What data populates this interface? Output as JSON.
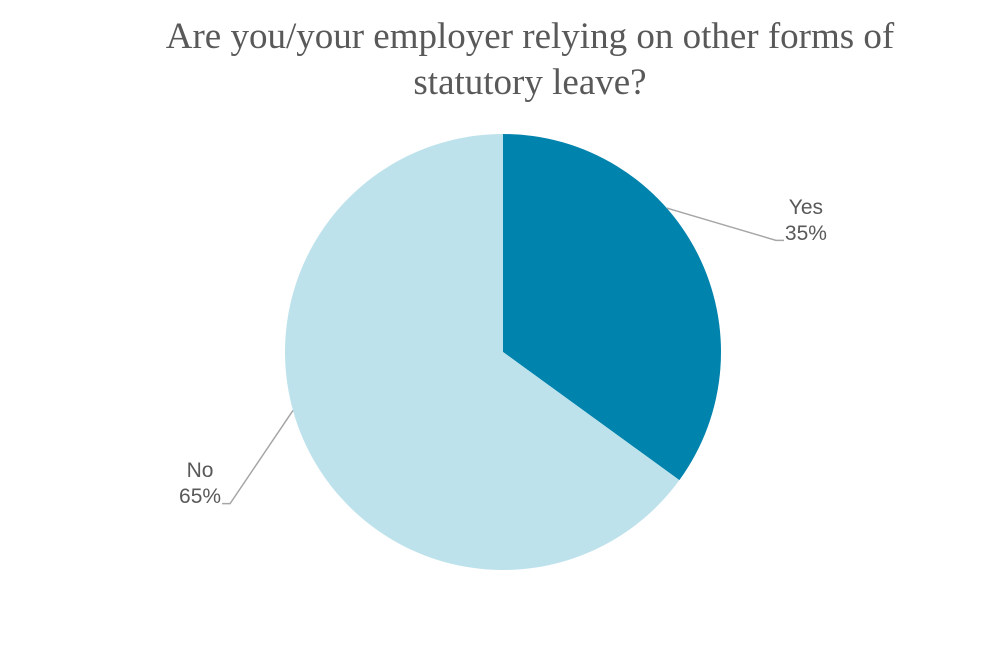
{
  "chart_data": {
    "type": "pie",
    "title": "Are you/your employer relying on other forms of statutory leave?",
    "categories": [
      "Yes",
      "No"
    ],
    "values": [
      35,
      65
    ],
    "value_labels": [
      "35%",
      "65%"
    ],
    "colors": [
      "#0083ad",
      "#bde2ec"
    ]
  }
}
